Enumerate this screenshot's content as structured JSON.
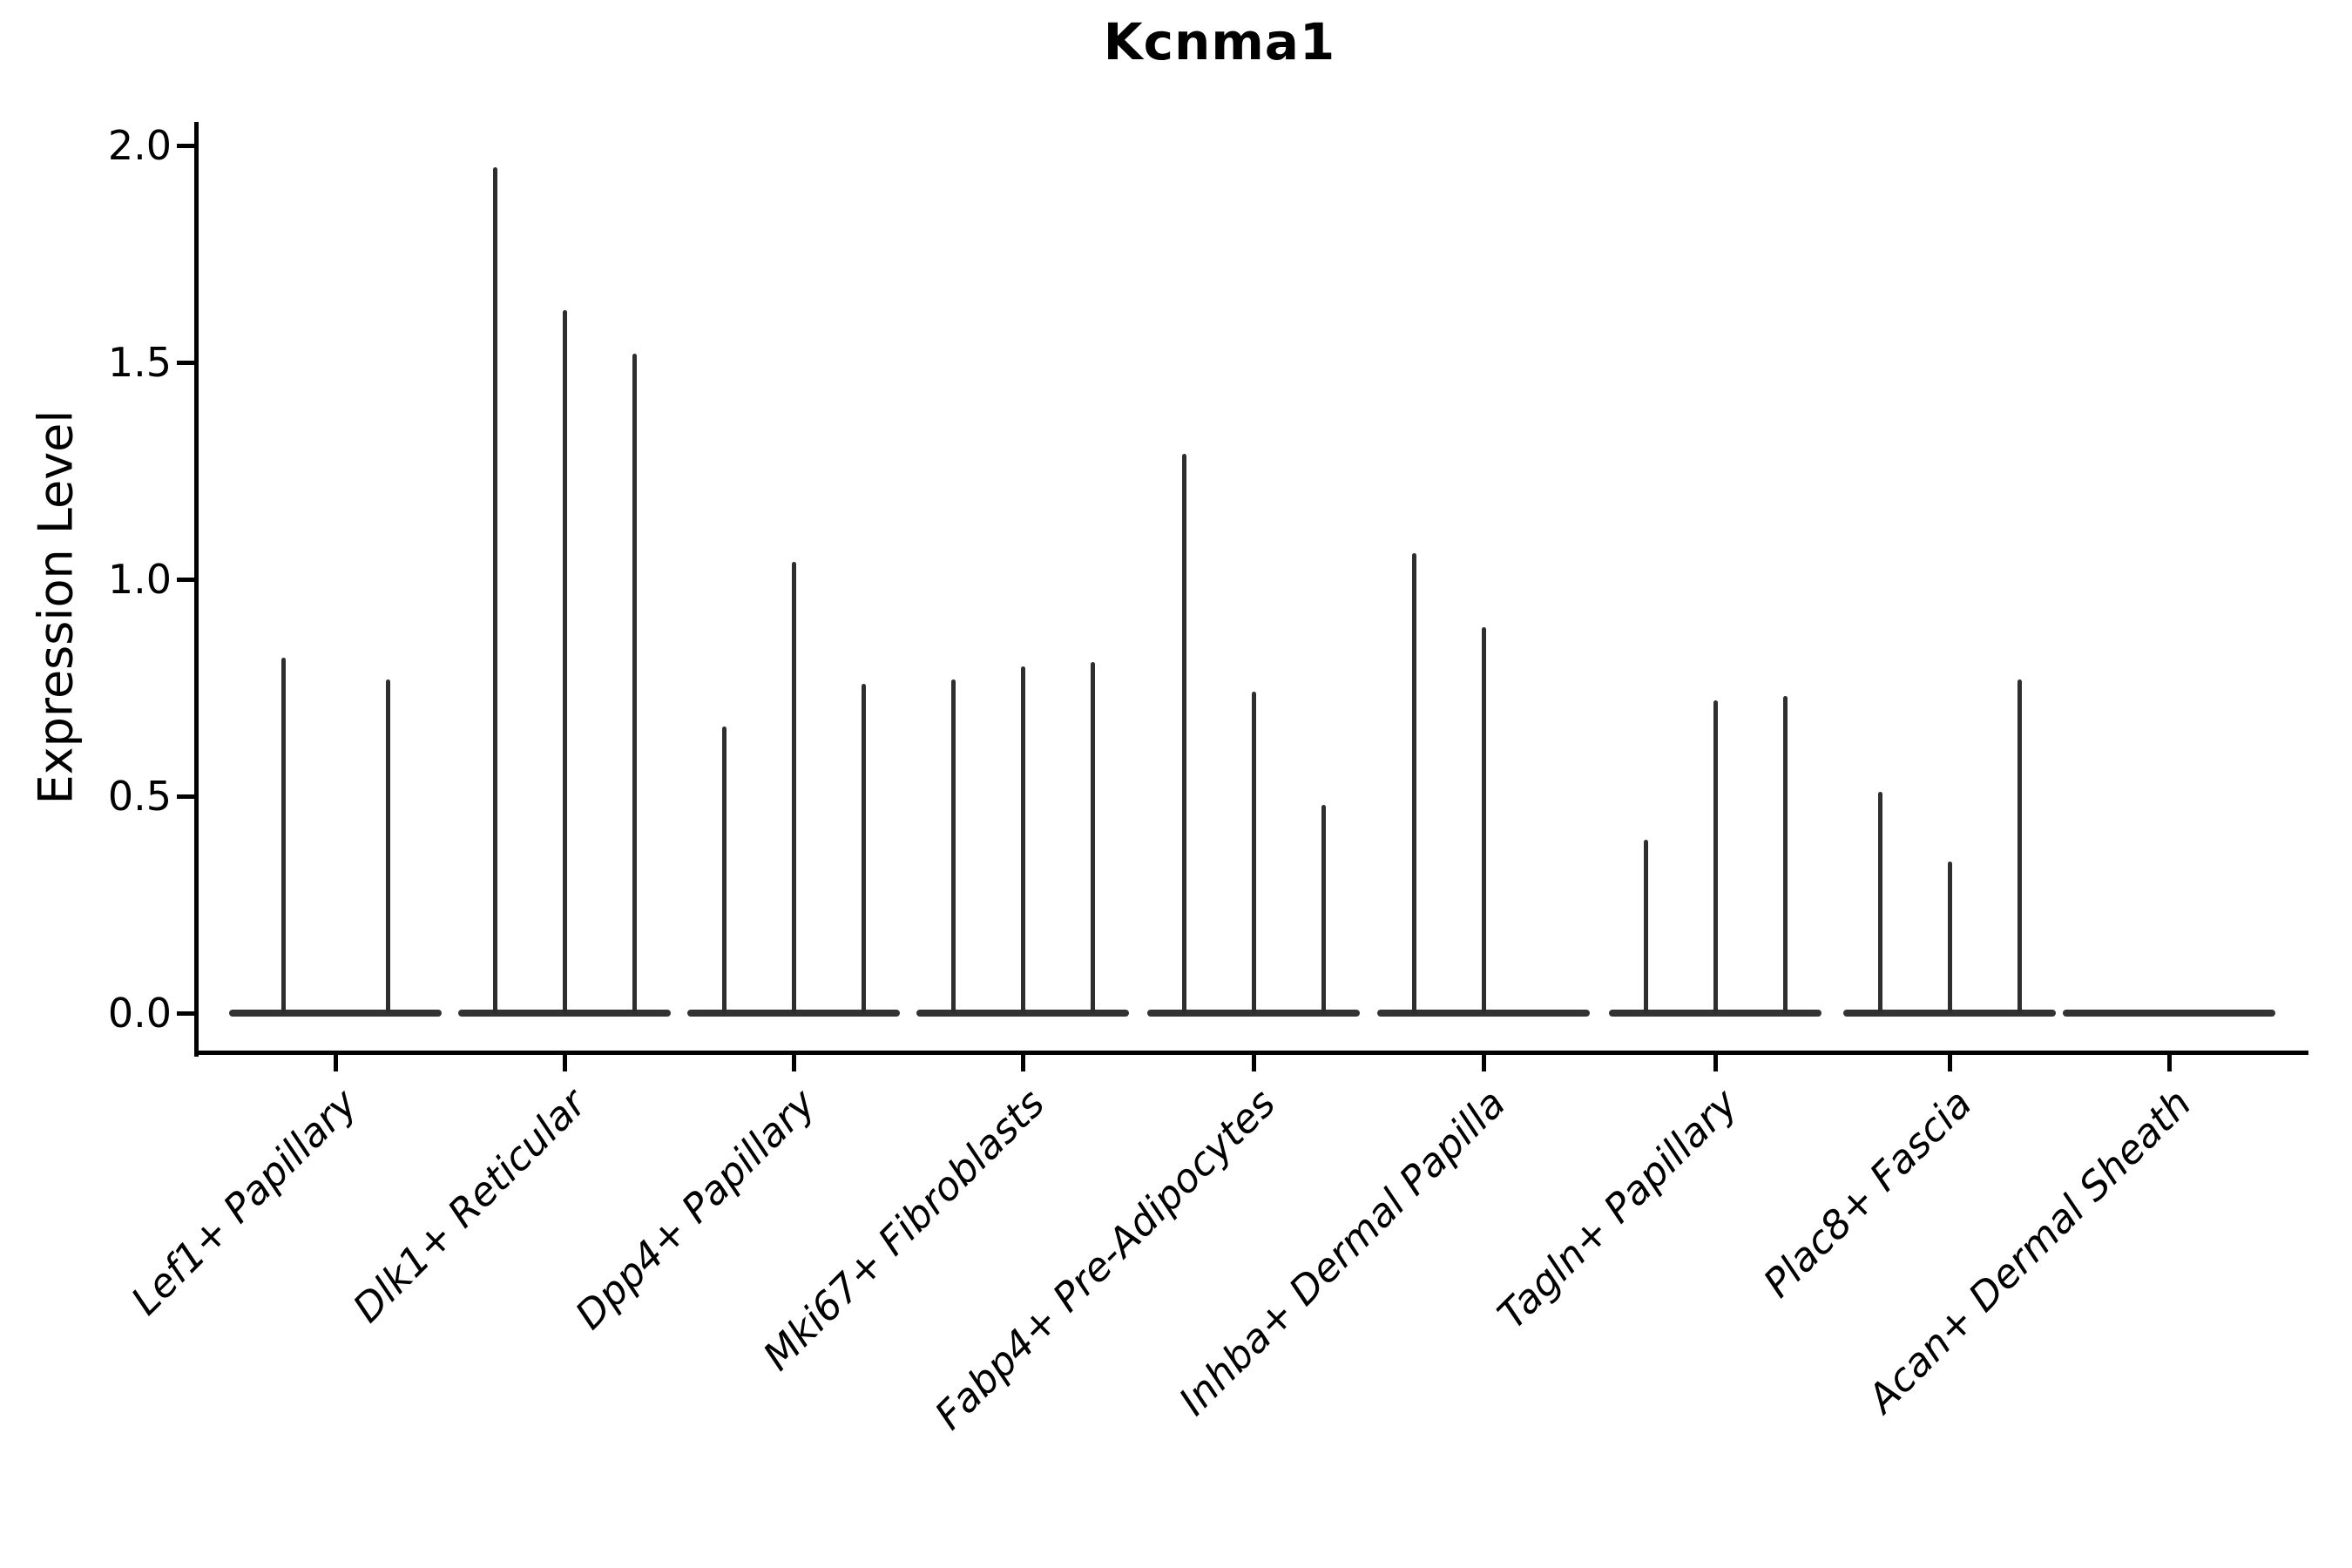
{
  "chart_data": {
    "type": "violin",
    "title": "Kcnma1",
    "ylabel": "Expression Level",
    "xlabel": "",
    "ylim": [
      0,
      2.05
    ],
    "yticks": [
      {
        "label": "0.0",
        "value": 0.0
      },
      {
        "label": "0.5",
        "value": 0.5
      },
      {
        "label": "1.0",
        "value": 1.0
      },
      {
        "label": "1.5",
        "value": 1.5
      },
      {
        "label": "2.0",
        "value": 2.0
      }
    ],
    "categories": [
      "Lef1+ Papillary",
      "Dlk1+ Reticular",
      "Dpp4+ Papillary",
      "Mki67+ Fibroblasts",
      "Fabp4+ Pre-Adipocytes",
      "Inhba+ Dermal Papilla",
      "Tagln+ Papillary",
      "Plac8+ Fascia",
      "Acan+ Dermal Sheath"
    ],
    "groups": [
      {
        "category": "Lef1+ Papillary",
        "violin_max_heights": [
          0.82,
          0.77
        ]
      },
      {
        "category": "Dlk1+ Reticular",
        "violin_max_heights": [
          1.95,
          1.62,
          1.52
        ]
      },
      {
        "category": "Dpp4+ Papillary",
        "violin_max_heights": [
          0.66,
          1.04,
          0.76
        ]
      },
      {
        "category": "Mki67+ Fibroblasts",
        "violin_max_heights": [
          0.77,
          0.8,
          0.81
        ]
      },
      {
        "category": "Fabp4+ Pre-Adipocytes",
        "violin_max_heights": [
          1.29,
          0.74,
          0.48
        ]
      },
      {
        "category": "Inhba+ Dermal Papilla",
        "violin_max_heights": [
          1.06,
          0.89,
          0.0
        ]
      },
      {
        "category": "Tagln+ Papillary",
        "violin_max_heights": [
          0.4,
          0.72,
          0.73
        ]
      },
      {
        "category": "Plac8+ Fascia",
        "violin_max_heights": [
          0.51,
          0.35,
          0.77
        ]
      },
      {
        "category": "Acan+ Dermal Sheath",
        "violin_max_heights": [
          0.0,
          0.0,
          0.0
        ]
      }
    ],
    "legend": null,
    "grid": false,
    "colors": {
      "violin_stroke": "#2e2e2e",
      "axis": "#000000",
      "background": "#ffffff"
    }
  }
}
